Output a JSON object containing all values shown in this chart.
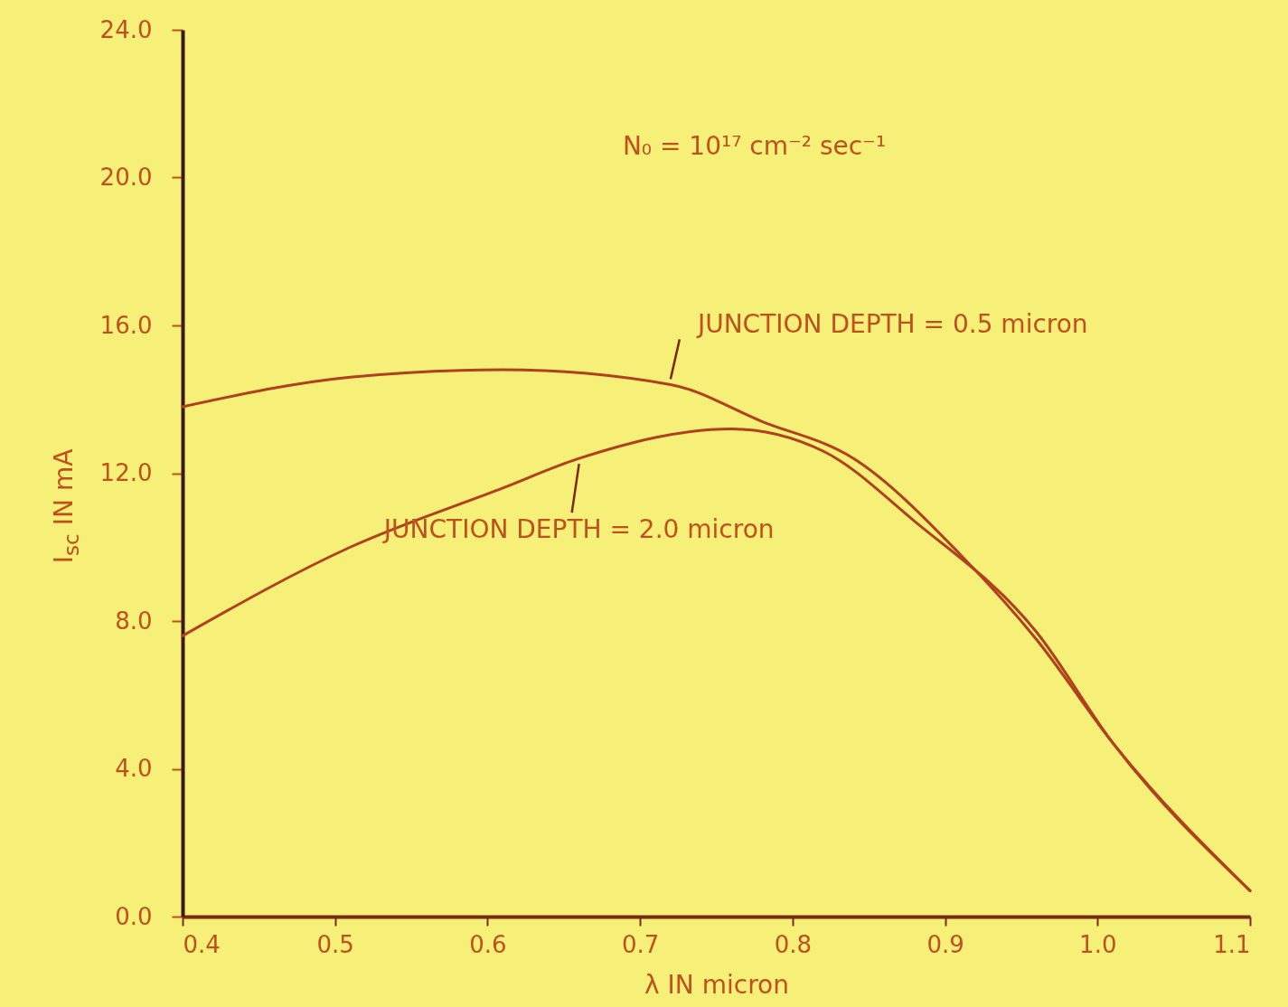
{
  "chart_data": {
    "type": "line",
    "xlabel": "λ IN micron",
    "ylabel": "I$_{sc}$ IN mA",
    "x": [
      0.4,
      0.51,
      0.61,
      0.66,
      0.72,
      0.76,
      0.78,
      0.82,
      0.84,
      0.88,
      0.91,
      0.96,
      1.01,
      1.1
    ],
    "series": [
      {
        "color": "#b0401e",
        "values": [
          13.8,
          14.6,
          14.8,
          null,
          14.4,
          null,
          13.4,
          null,
          12.4,
          null,
          9.8,
          7.5,
          4.7,
          0.7
        ]
      },
      {
        "color": "#b0401e",
        "values": [
          7.6,
          10.0,
          11.6,
          12.4,
          null,
          13.2,
          null,
          12.6,
          null,
          10.7,
          null,
          7.7,
          4.7,
          0.7
        ]
      }
    ],
    "xlim": [
      0.4,
      1.1
    ],
    "xticks": [
      0.4,
      0.5,
      0.6,
      0.7,
      0.8,
      0.9,
      {
        "value": 1,
        "label": "1.0"
      },
      1.1
    ],
    "ylim": [
      0,
      24
    ],
    "yticks": [
      {
        "value": 0,
        "label": "0.0"
      },
      {
        "value": 4,
        "label": "4.0"
      },
      {
        "value": 8,
        "label": "8.0"
      },
      {
        "value": 12,
        "label": "12.0"
      },
      {
        "value": 16,
        "label": "16.0"
      },
      {
        "value": 20,
        "label": "20.0"
      },
      {
        "value": 24,
        "label": "24.0"
      }
    ],
    "grid": false,
    "legend": false,
    "marker": "none",
    "line_style": "solid",
    "annotations": [
      "N₀ = 10¹⁷ cm⁻² sec⁻¹",
      {
        "text": "JUNCTION DEPTH = 0.5 micron",
        "x": 0.72,
        "y": 14.4
      },
      {
        "text": "JUNCTION DEPTH = 2.0 micron",
        "x": 0.66,
        "y": 12.4
      }
    ]
  }
}
